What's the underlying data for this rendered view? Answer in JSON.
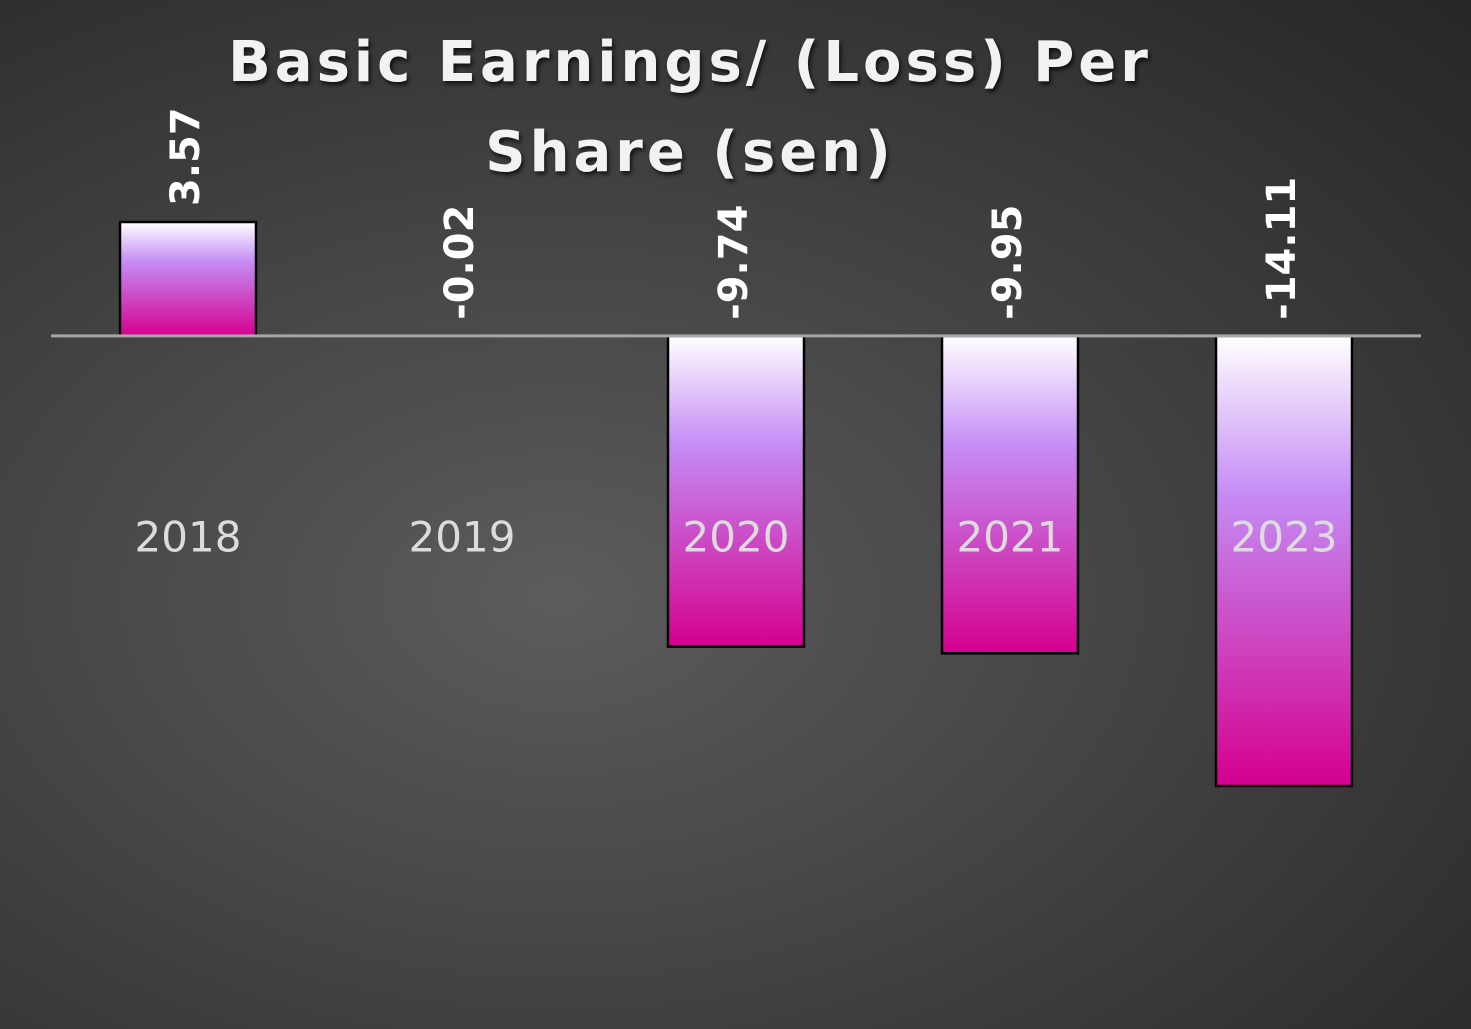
{
  "chart_data": {
    "type": "bar",
    "title": "Basic Earnings/ (Loss) Per Share (sen)",
    "categories": [
      "2018",
      "2019",
      "2020",
      "2021",
      "2023"
    ],
    "values": [
      3.57,
      -0.02,
      -9.74,
      -9.95,
      -14.11
    ]
  }
}
